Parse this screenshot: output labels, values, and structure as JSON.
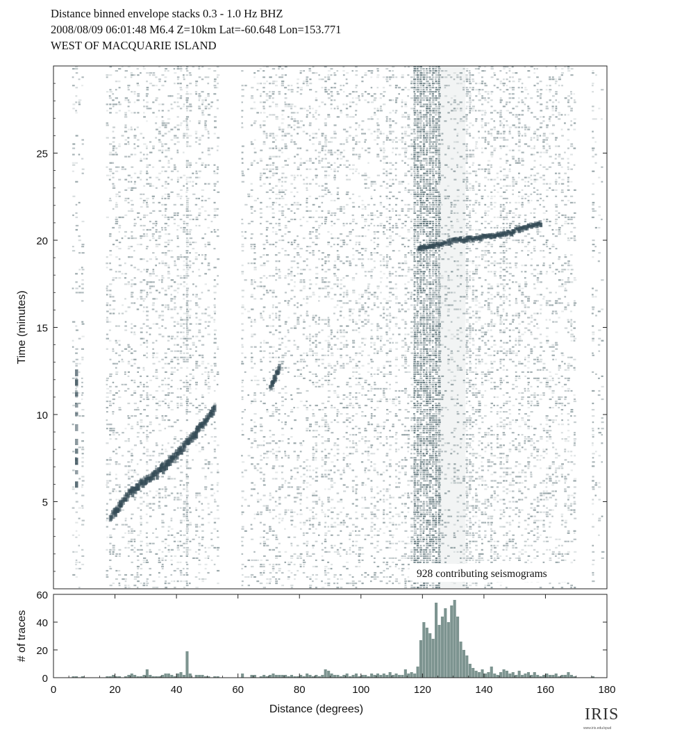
{
  "header": {
    "line1": "Distance binned envelope stacks  0.3 - 1.0 Hz  BHZ",
    "line2": "2008/08/09  06:01:48  M6.4  Z=10km Lat=-60.648 Lon=153.771",
    "line3": "WEST OF MACQUARIE ISLAND"
  },
  "logo": {
    "brand": "IRIS",
    "url": "www.iris.edu/spud"
  },
  "colors": {
    "ink": "#4a6268",
    "hist": "#7d9490",
    "frame": "#222222"
  },
  "chart_data": [
    {
      "type": "heatmap",
      "title": "",
      "xlabel": "",
      "ylabel": "Time (minutes)",
      "xlim": [
        0,
        180
      ],
      "ylim": [
        0,
        30
      ],
      "yticks": [
        "5",
        "10",
        "15",
        "20",
        "25"
      ],
      "annotation": "928 contributing seismograms",
      "arrivals": [
        {
          "phase_branch": "direct",
          "points": [
            [
              18,
              4.1
            ],
            [
              25,
              5.6
            ],
            [
              32,
              6.5
            ],
            [
              38,
              7.4
            ],
            [
              42,
              8.2
            ],
            [
              46,
              9.0
            ],
            [
              52,
              10.3
            ]
          ]
        },
        {
          "phase_branch": "early",
          "points": [
            [
              7,
              6.0
            ],
            [
              7,
              12.5
            ]
          ]
        },
        {
          "phase_branch": "mid",
          "points": [
            [
              70,
              11.5
            ],
            [
              73,
              12.6
            ]
          ]
        },
        {
          "phase_branch": "shadow",
          "points": [
            [
              118,
              19.5
            ],
            [
              130,
              20.0
            ],
            [
              145,
              20.3
            ],
            [
              158,
              21.0
            ]
          ]
        }
      ],
      "empty_bins": [
        [
          0,
          6
        ],
        [
          9,
          17
        ],
        [
          53,
          61
        ],
        [
          160,
          175
        ]
      ],
      "dense_bins": [
        [
          117,
          125
        ]
      ]
    },
    {
      "type": "bar",
      "title": "",
      "xlabel": "Distance (degrees)",
      "ylabel": "# of traces",
      "xlim": [
        0,
        180
      ],
      "ylim": [
        0,
        60
      ],
      "xticks": [
        "0",
        "20",
        "40",
        "60",
        "80",
        "100",
        "120",
        "140",
        "160",
        "180"
      ],
      "yticks": [
        "0",
        "20",
        "40",
        "60"
      ],
      "bin_width": 1,
      "bins": [
        [
          6,
          1
        ],
        [
          7,
          1
        ],
        [
          9,
          1
        ],
        [
          17,
          1
        ],
        [
          18,
          1
        ],
        [
          19,
          2
        ],
        [
          20,
          1
        ],
        [
          21,
          1
        ],
        [
          23,
          1
        ],
        [
          24,
          2
        ],
        [
          25,
          3
        ],
        [
          26,
          2
        ],
        [
          27,
          1
        ],
        [
          28,
          1
        ],
        [
          29,
          2
        ],
        [
          30,
          6
        ],
        [
          31,
          2
        ],
        [
          32,
          1
        ],
        [
          33,
          1
        ],
        [
          34,
          1
        ],
        [
          35,
          2
        ],
        [
          36,
          3
        ],
        [
          37,
          3
        ],
        [
          38,
          2
        ],
        [
          39,
          1
        ],
        [
          40,
          3
        ],
        [
          41,
          4
        ],
        [
          42,
          2
        ],
        [
          43,
          19
        ],
        [
          44,
          3
        ],
        [
          46,
          2
        ],
        [
          47,
          2
        ],
        [
          48,
          2
        ],
        [
          49,
          1
        ],
        [
          50,
          1
        ],
        [
          52,
          1
        ],
        [
          53,
          1
        ],
        [
          61,
          3
        ],
        [
          64,
          2
        ],
        [
          65,
          2
        ],
        [
          67,
          1
        ],
        [
          68,
          2
        ],
        [
          69,
          1
        ],
        [
          70,
          2
        ],
        [
          71,
          3
        ],
        [
          72,
          2
        ],
        [
          73,
          2
        ],
        [
          74,
          2
        ],
        [
          75,
          2
        ],
        [
          76,
          1
        ],
        [
          77,
          2
        ],
        [
          78,
          1
        ],
        [
          79,
          1
        ],
        [
          80,
          2
        ],
        [
          81,
          1
        ],
        [
          82,
          3
        ],
        [
          83,
          2
        ],
        [
          84,
          1
        ],
        [
          85,
          2
        ],
        [
          86,
          1
        ],
        [
          87,
          2
        ],
        [
          88,
          6
        ],
        [
          89,
          5
        ],
        [
          90,
          3
        ],
        [
          91,
          2
        ],
        [
          92,
          2
        ],
        [
          93,
          1
        ],
        [
          94,
          2
        ],
        [
          95,
          3
        ],
        [
          96,
          1
        ],
        [
          97,
          2
        ],
        [
          98,
          3
        ],
        [
          99,
          1
        ],
        [
          100,
          2
        ],
        [
          101,
          2
        ],
        [
          102,
          1
        ],
        [
          103,
          3
        ],
        [
          104,
          2
        ],
        [
          105,
          3
        ],
        [
          106,
          2
        ],
        [
          107,
          3
        ],
        [
          108,
          2
        ],
        [
          109,
          4
        ],
        [
          110,
          2
        ],
        [
          111,
          3
        ],
        [
          112,
          2
        ],
        [
          113,
          2
        ],
        [
          114,
          6
        ],
        [
          115,
          3
        ],
        [
          116,
          4
        ],
        [
          117,
          3
        ],
        [
          118,
          8
        ],
        [
          119,
          27
        ],
        [
          120,
          40
        ],
        [
          121,
          36
        ],
        [
          122,
          32
        ],
        [
          123,
          28
        ],
        [
          124,
          54
        ],
        [
          125,
          38
        ],
        [
          126,
          44
        ],
        [
          127,
          50
        ],
        [
          128,
          40
        ],
        [
          129,
          52
        ],
        [
          130,
          56
        ],
        [
          131,
          44
        ],
        [
          132,
          26
        ],
        [
          133,
          20
        ],
        [
          134,
          16
        ],
        [
          135,
          10
        ],
        [
          136,
          7
        ],
        [
          137,
          5
        ],
        [
          138,
          4
        ],
        [
          139,
          6
        ],
        [
          140,
          3
        ],
        [
          141,
          4
        ],
        [
          142,
          8
        ],
        [
          143,
          3
        ],
        [
          144,
          2
        ],
        [
          145,
          4
        ],
        [
          146,
          6
        ],
        [
          147,
          5
        ],
        [
          148,
          3
        ],
        [
          149,
          4
        ],
        [
          150,
          2
        ],
        [
          151,
          5
        ],
        [
          152,
          2
        ],
        [
          153,
          3
        ],
        [
          154,
          4
        ],
        [
          155,
          2
        ],
        [
          156,
          4
        ],
        [
          157,
          2
        ],
        [
          158,
          1
        ],
        [
          159,
          2
        ],
        [
          160,
          3
        ],
        [
          161,
          2
        ],
        [
          162,
          2
        ],
        [
          163,
          3
        ],
        [
          164,
          1
        ],
        [
          165,
          2
        ],
        [
          166,
          2
        ],
        [
          167,
          4
        ],
        [
          168,
          2
        ],
        [
          169,
          1
        ],
        [
          175,
          1
        ]
      ]
    }
  ]
}
